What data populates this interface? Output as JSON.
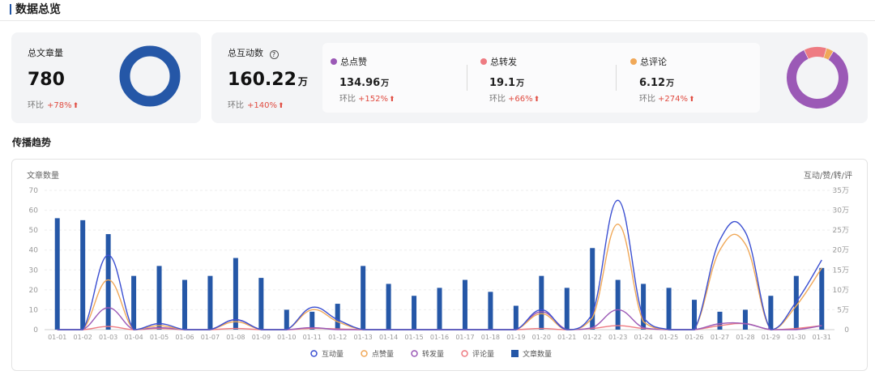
{
  "header": {
    "title": "数据总览"
  },
  "card_articles": {
    "label": "总文章量",
    "value": "780",
    "compare_label": "环比",
    "compare_pct": "+78%",
    "ring_color": "#2557a7"
  },
  "card_interactions": {
    "label": "总互动数",
    "value": "160.22",
    "unit": "万",
    "compare_label": "环比",
    "compare_pct": "+140%",
    "metrics": [
      {
        "name": "总点赞",
        "value": "134.96",
        "unit": "万",
        "compare_label": "环比",
        "compare_pct": "+152%",
        "color": "#9b59b6"
      },
      {
        "name": "总转发",
        "value": "19.1",
        "unit": "万",
        "compare_label": "环比",
        "compare_pct": "+66%",
        "color": "#ee7b82"
      },
      {
        "name": "总评论",
        "value": "6.12",
        "unit": "万",
        "compare_label": "环比",
        "compare_pct": "+274%",
        "color": "#f0a858"
      }
    ],
    "donut": [
      {
        "name": "总点赞",
        "value": 134.96,
        "color": "#9b59b6"
      },
      {
        "name": "总转发",
        "value": 19.1,
        "color": "#ee7b82"
      },
      {
        "name": "总评论",
        "value": 6.12,
        "color": "#f0a858"
      }
    ]
  },
  "trend": {
    "title": "传播趋势"
  },
  "chart_data": {
    "type": "bar",
    "ylabel_left": "文章数量",
    "ylabel_right": "互动/赞/转/评",
    "ylim_left": [
      0,
      70
    ],
    "yticks_left": [
      "0",
      "10",
      "20",
      "30",
      "40",
      "50",
      "60",
      "70"
    ],
    "ylim_right": [
      0,
      35
    ],
    "yticks_right": [
      "0",
      "5万",
      "10万",
      "15万",
      "20万",
      "25万",
      "30万",
      "35万"
    ],
    "categories": [
      "01-01",
      "01-02",
      "01-03",
      "01-04",
      "01-05",
      "01-06",
      "01-07",
      "01-08",
      "01-09",
      "01-10",
      "01-11",
      "01-12",
      "01-13",
      "01-14",
      "01-15",
      "01-16",
      "01-17",
      "01-18",
      "01-19",
      "01-20",
      "01-21",
      "01-22",
      "01-23",
      "01-24",
      "01-25",
      "01-26",
      "01-27",
      "01-28",
      "01-29",
      "01-30",
      "01-31"
    ],
    "grid": true,
    "legend_position": "bottom-center",
    "series": [
      {
        "name": "互动量",
        "type": "line",
        "axis": "right",
        "color": "#3b4fd1",
        "values": [
          0,
          0,
          18.7,
          0,
          1.5,
          0,
          0,
          2.5,
          0,
          0,
          5.6,
          2.5,
          0,
          0,
          0,
          0,
          0,
          0,
          0,
          5,
          0,
          4,
          32.5,
          3,
          0,
          0,
          22.5,
          24.5,
          0,
          7,
          17.5
        ]
      },
      {
        "name": "点赞量",
        "type": "line",
        "axis": "right",
        "color": "#f0a858",
        "values": [
          0,
          0,
          12.5,
          0,
          1,
          0,
          0,
          2,
          0,
          0,
          5,
          2,
          0,
          0,
          0,
          0,
          0,
          0,
          0,
          4,
          0,
          3,
          26.5,
          2,
          0,
          0,
          20,
          21.5,
          0,
          6,
          15.5
        ]
      },
      {
        "name": "转发量",
        "type": "line",
        "axis": "right",
        "color": "#9b59b6",
        "values": [
          0,
          0,
          5.5,
          0,
          0.5,
          0,
          0,
          2.5,
          0,
          0,
          0.5,
          0,
          0,
          0,
          0,
          0,
          0,
          0,
          0,
          4.5,
          0,
          0.5,
          5,
          0.5,
          0,
          0,
          1.5,
          1.5,
          0,
          0,
          1
        ]
      },
      {
        "name": "评论量",
        "type": "line",
        "axis": "right",
        "color": "#ee7b82",
        "values": [
          0,
          0,
          0.8,
          0,
          0.3,
          0,
          0,
          0.3,
          0,
          0,
          0.3,
          0.2,
          0,
          0,
          0,
          0,
          0,
          0,
          0,
          0.3,
          0,
          0.3,
          1,
          0.3,
          0,
          0,
          1,
          1.5,
          0,
          0.3,
          1
        ]
      },
      {
        "name": "文章数量",
        "type": "bar",
        "axis": "left",
        "color": "#2557a7",
        "values": [
          56,
          55,
          48,
          27,
          32,
          25,
          27,
          36,
          26,
          10,
          9,
          13,
          32,
          23,
          17,
          21,
          25,
          19,
          12,
          27,
          21,
          41,
          25,
          23,
          21,
          15,
          9,
          10,
          17,
          27,
          31
        ]
      }
    ]
  }
}
